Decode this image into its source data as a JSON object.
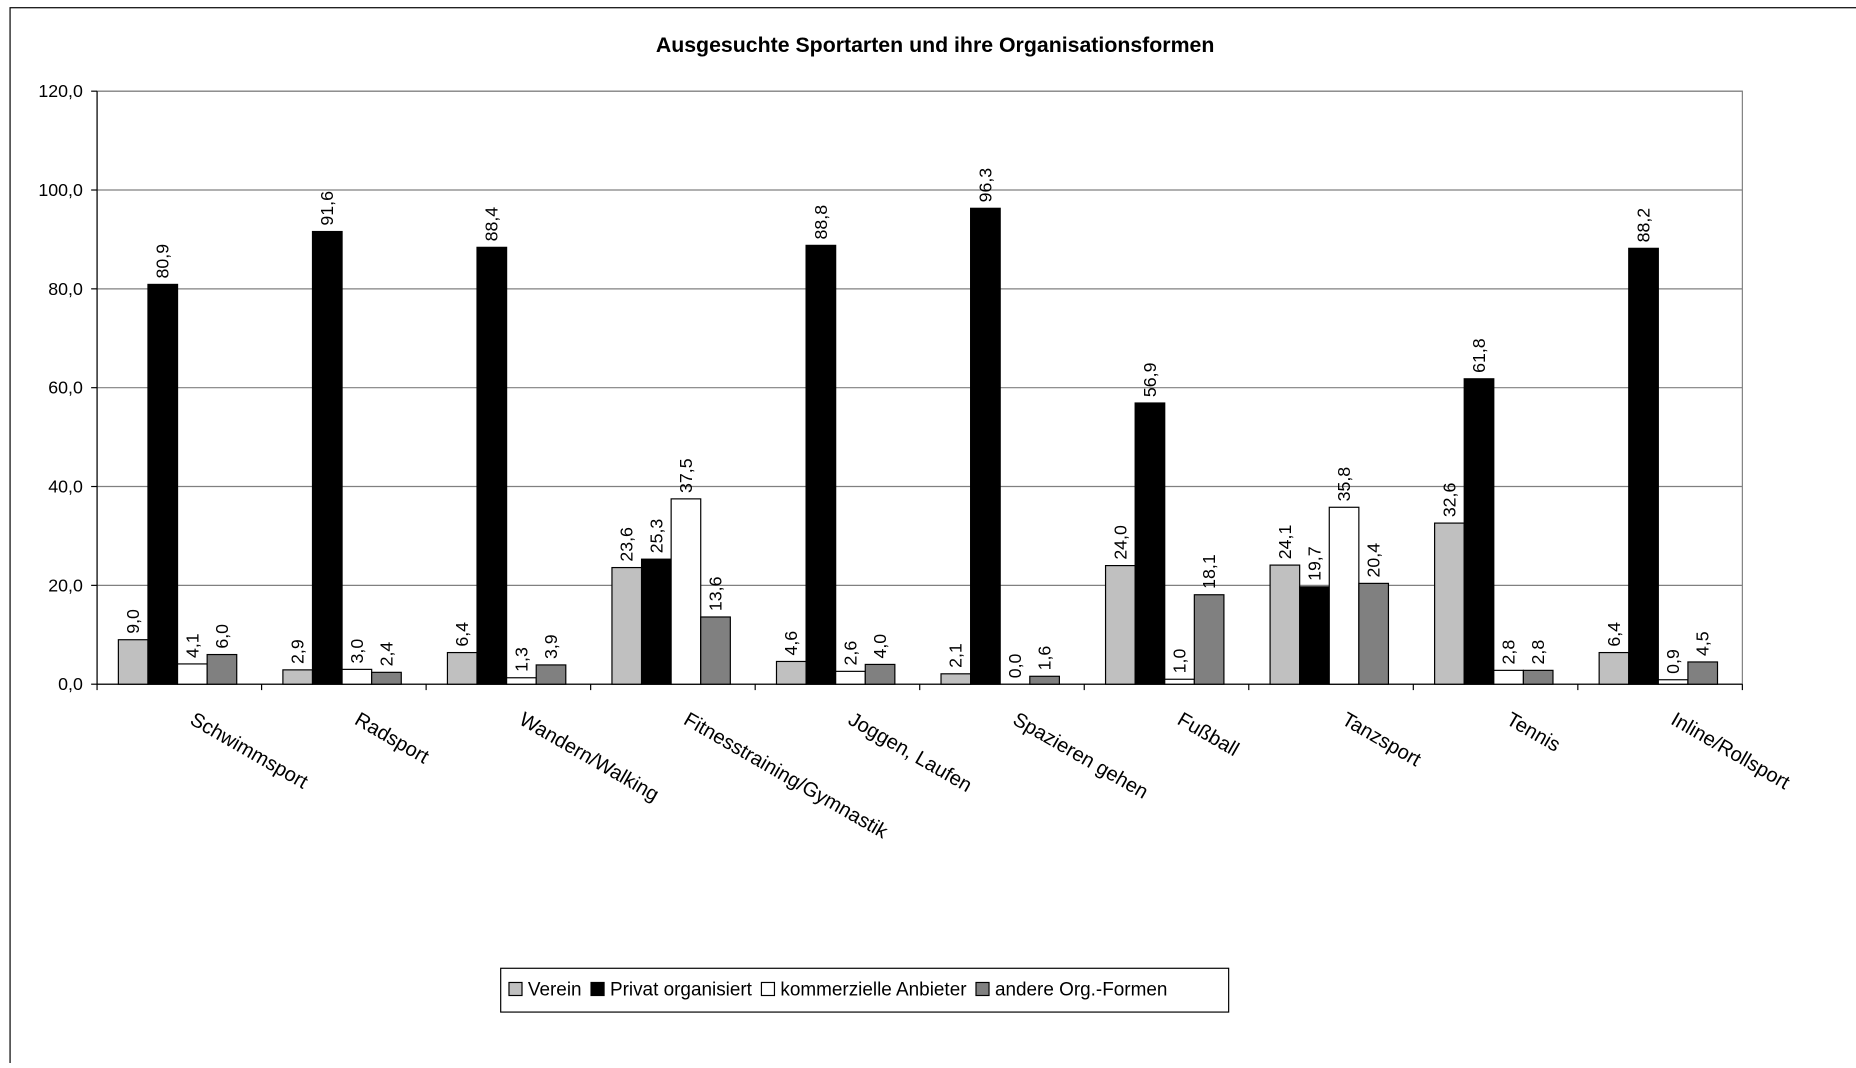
{
  "chart_data": {
    "type": "bar",
    "title": "Ausgesuchte Sportarten und ihre Organisationsformen",
    "categories": [
      "Schwimmsport",
      "Radsport",
      "Wandern/Walking",
      "Fitnesstraining/Gymnastik",
      "Joggen, Laufen",
      "Spazieren gehen",
      "Fußball",
      "Tanzsport",
      "Tennis",
      "Inline/Rollsport"
    ],
    "series": [
      {
        "name": "Verein",
        "color": "#c0c0c0",
        "values": [
          9.0,
          2.9,
          6.4,
          23.6,
          4.6,
          2.1,
          24.0,
          24.1,
          32.6,
          6.4
        ],
        "value_labels": [
          "9,0",
          "2,9",
          "6,4",
          "23,6",
          "4,6",
          "2,1",
          "24,0",
          "24,1",
          "32,6",
          "6,4"
        ]
      },
      {
        "name": "Privat organisiert",
        "color": "#000000",
        "values": [
          80.9,
          91.6,
          88.4,
          25.3,
          88.8,
          96.3,
          56.9,
          19.7,
          61.8,
          88.2
        ],
        "value_labels": [
          "80,9",
          "91,6",
          "88,4",
          "25,3",
          "88,8",
          "96,3",
          "56,9",
          "19,7",
          "61,8",
          "88,2"
        ]
      },
      {
        "name": "kommerzielle Anbieter",
        "color": "#ffffff",
        "values": [
          4.1,
          3.0,
          1.3,
          37.5,
          2.6,
          0.0,
          1.0,
          35.8,
          2.8,
          0.9
        ],
        "value_labels": [
          "4,1",
          "3,0",
          "1,3",
          "37,5",
          "2,6",
          "0,0",
          "1,0",
          "35,8",
          "2,8",
          "0,9"
        ]
      },
      {
        "name": "andere Org.-Formen",
        "color": "#808080",
        "values": [
          6.0,
          2.4,
          3.9,
          13.6,
          4.0,
          1.6,
          18.1,
          20.4,
          2.8,
          4.5
        ],
        "value_labels": [
          "6,0",
          "2,4",
          "3,9",
          "13,6",
          "4,0",
          "1,6",
          "18,1",
          "20,4",
          "2,8",
          "4,5"
        ]
      }
    ],
    "ylim": [
      0,
      120
    ],
    "yticks": [
      {
        "value": 0,
        "label": "0,0"
      },
      {
        "value": 20,
        "label": "20,0"
      },
      {
        "value": 40,
        "label": "40,0"
      },
      {
        "value": 60,
        "label": "60,0"
      },
      {
        "value": 80,
        "label": "80,0"
      },
      {
        "value": 100,
        "label": "100,0"
      },
      {
        "value": 120,
        "label": "120,0"
      }
    ],
    "grid": true,
    "legend": "bottom"
  }
}
